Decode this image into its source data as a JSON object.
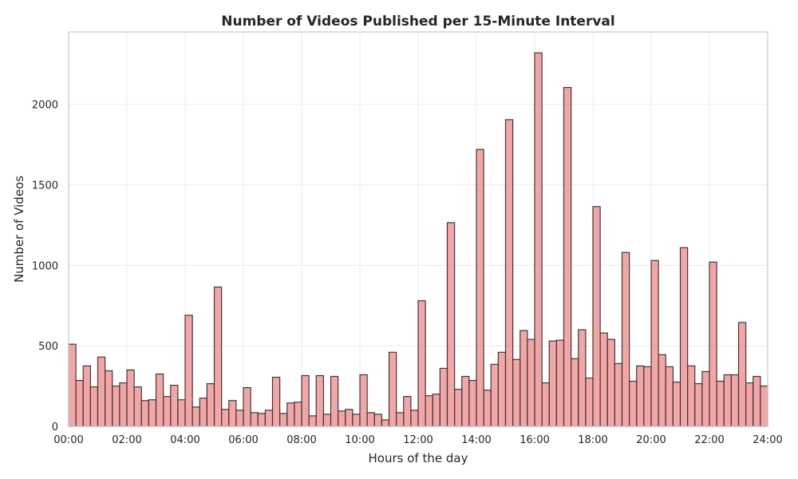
{
  "chart_data": {
    "type": "bar",
    "title": "Number of Videos Published per 15-Minute Interval",
    "xlabel": "Hours of the day",
    "ylabel": "Number of Videos",
    "xlim": [
      0,
      24
    ],
    "ylim": [
      0,
      2450
    ],
    "bin_width_hours": 0.25,
    "x_ticks": [
      0,
      2,
      4,
      6,
      8,
      10,
      12,
      14,
      16,
      18,
      20,
      22,
      24
    ],
    "x_tick_labels": [
      "00:00",
      "02:00",
      "04:00",
      "06:00",
      "08:00",
      "10:00",
      "12:00",
      "14:00",
      "16:00",
      "18:00",
      "20:00",
      "22:00",
      "24:00"
    ],
    "y_ticks": [
      0,
      500,
      1000,
      1500,
      2000
    ],
    "y_tick_labels": [
      "0",
      "500",
      "1000",
      "1500",
      "2000"
    ],
    "grid": true,
    "bar_color": "#f08080",
    "edge_color": "#3a3a3a",
    "values": [
      510,
      285,
      375,
      245,
      430,
      345,
      250,
      270,
      350,
      245,
      160,
      165,
      325,
      185,
      255,
      165,
      690,
      120,
      175,
      265,
      865,
      105,
      160,
      100,
      240,
      85,
      80,
      100,
      305,
      80,
      145,
      150,
      315,
      65,
      315,
      75,
      310,
      95,
      105,
      75,
      320,
      85,
      75,
      40,
      460,
      85,
      185,
      100,
      780,
      190,
      200,
      360,
      1265,
      230,
      310,
      285,
      1720,
      225,
      385,
      460,
      1905,
      415,
      595,
      540,
      2320,
      270,
      530,
      535,
      2105,
      420,
      600,
      300,
      1365,
      580,
      540,
      390,
      1080,
      280,
      375,
      370,
      1030,
      445,
      370,
      275,
      1110,
      375,
      265,
      340,
      1020,
      280,
      320,
      320,
      645,
      270,
      310,
      250
    ]
  }
}
